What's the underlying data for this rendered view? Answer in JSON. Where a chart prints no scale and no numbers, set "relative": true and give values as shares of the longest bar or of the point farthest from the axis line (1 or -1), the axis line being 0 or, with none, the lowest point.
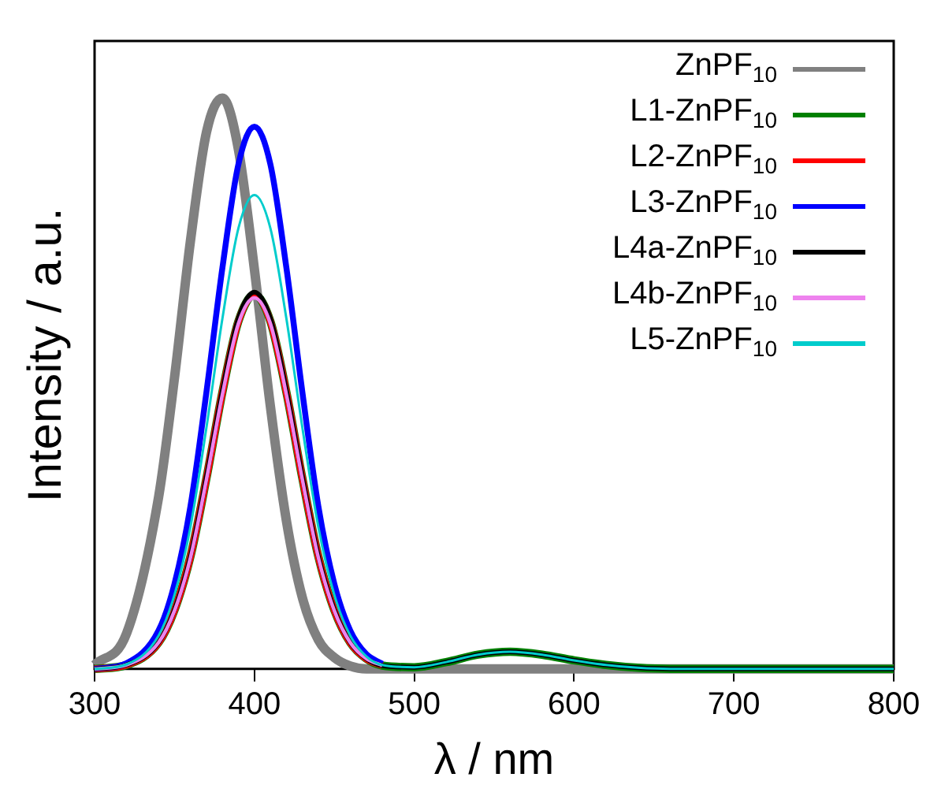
{
  "chart_data": {
    "type": "line",
    "xlabel": "λ / nm",
    "ylabel": "Intensity / a.u.",
    "relative": true,
    "xlim": [
      300,
      800
    ],
    "xticks": [
      300,
      400,
      500,
      600,
      700,
      800
    ],
    "grid": false,
    "legend": "top right",
    "marker": "none",
    "line_style": "solid",
    "x": [
      300,
      320,
      340,
      350,
      360,
      370,
      380,
      390,
      400,
      410,
      420,
      430,
      440,
      450,
      460,
      470,
      480,
      500,
      520,
      540,
      560,
      580,
      600,
      620,
      640,
      660,
      700,
      800
    ],
    "series": [
      {
        "name": "ZnPF$_{10}$",
        "color": "#808080",
        "values": [
          0.007,
          0.062,
          0.3,
          0.51,
          0.75,
          0.94,
          1.0,
          0.91,
          0.7,
          0.46,
          0.26,
          0.125,
          0.051,
          0.02,
          0.005,
          0,
          0,
          0,
          0,
          0,
          0,
          0,
          0,
          0,
          0,
          0,
          0,
          0
        ]
      },
      {
        "name": "L1-ZnPF$_{10}$",
        "color": "#008000",
        "values": [
          0,
          0.007,
          0.046,
          0.103,
          0.197,
          0.334,
          0.485,
          0.609,
          0.655,
          0.609,
          0.485,
          0.334,
          0.197,
          0.103,
          0.046,
          0.018,
          0.006,
          0.003,
          0.012,
          0.025,
          0.03,
          0.025,
          0.015,
          0.007,
          0.002,
          0,
          0,
          0
        ]
      },
      {
        "name": "L2-ZnPF$_{10}$",
        "color": "#ff0000",
        "values": [
          0,
          0.007,
          0.046,
          0.103,
          0.197,
          0.334,
          0.485,
          0.609,
          0.655,
          0.609,
          0.485,
          0.334,
          0.197,
          0.103,
          0.046,
          0.018,
          0.006,
          null,
          null,
          null,
          null,
          null,
          null,
          null,
          null,
          null,
          null,
          null
        ]
      },
      {
        "name": "L3-ZnPF$_{10}$",
        "color": "#0000ff",
        "values": [
          0,
          0.01,
          0.067,
          0.149,
          0.285,
          0.485,
          0.703,
          0.884,
          0.95,
          0.884,
          0.703,
          0.485,
          0.285,
          0.149,
          0.067,
          0.026,
          0.009,
          null,
          null,
          null,
          null,
          null,
          null,
          null,
          null,
          null,
          null,
          null
        ]
      },
      {
        "name": "L4a-ZnPF$_{10}$",
        "color": "#000000",
        "values": [
          0,
          0.007,
          0.046,
          0.104,
          0.198,
          0.337,
          0.488,
          0.614,
          0.66,
          0.614,
          0.488,
          0.337,
          0.198,
          0.104,
          0.046,
          0.018,
          0.006,
          0.003,
          0.012,
          0.025,
          0.03,
          0.025,
          0.015,
          0.007,
          0.002,
          0,
          0,
          0
        ]
      },
      {
        "name": "L4b-ZnPF$_{10}$",
        "color": "#ee82ee",
        "values": [
          0,
          0.007,
          0.046,
          0.102,
          0.195,
          0.332,
          0.481,
          0.605,
          0.65,
          0.605,
          0.481,
          0.332,
          0.195,
          0.102,
          0.046,
          0.018,
          0.006,
          null,
          null,
          null,
          null,
          null,
          null,
          null,
          null,
          null,
          null,
          null
        ]
      },
      {
        "name": "L5-ZnPF$_{10}$",
        "color": "#00cccc",
        "values": [
          0,
          0.008,
          0.058,
          0.13,
          0.249,
          0.423,
          0.614,
          0.772,
          0.83,
          0.772,
          0.614,
          0.423,
          0.249,
          0.13,
          0.058,
          0.022,
          0.007,
          0.003,
          0.012,
          0.025,
          0.03,
          0.025,
          0.015,
          0.007,
          0.002,
          0,
          0,
          0
        ]
      }
    ]
  }
}
